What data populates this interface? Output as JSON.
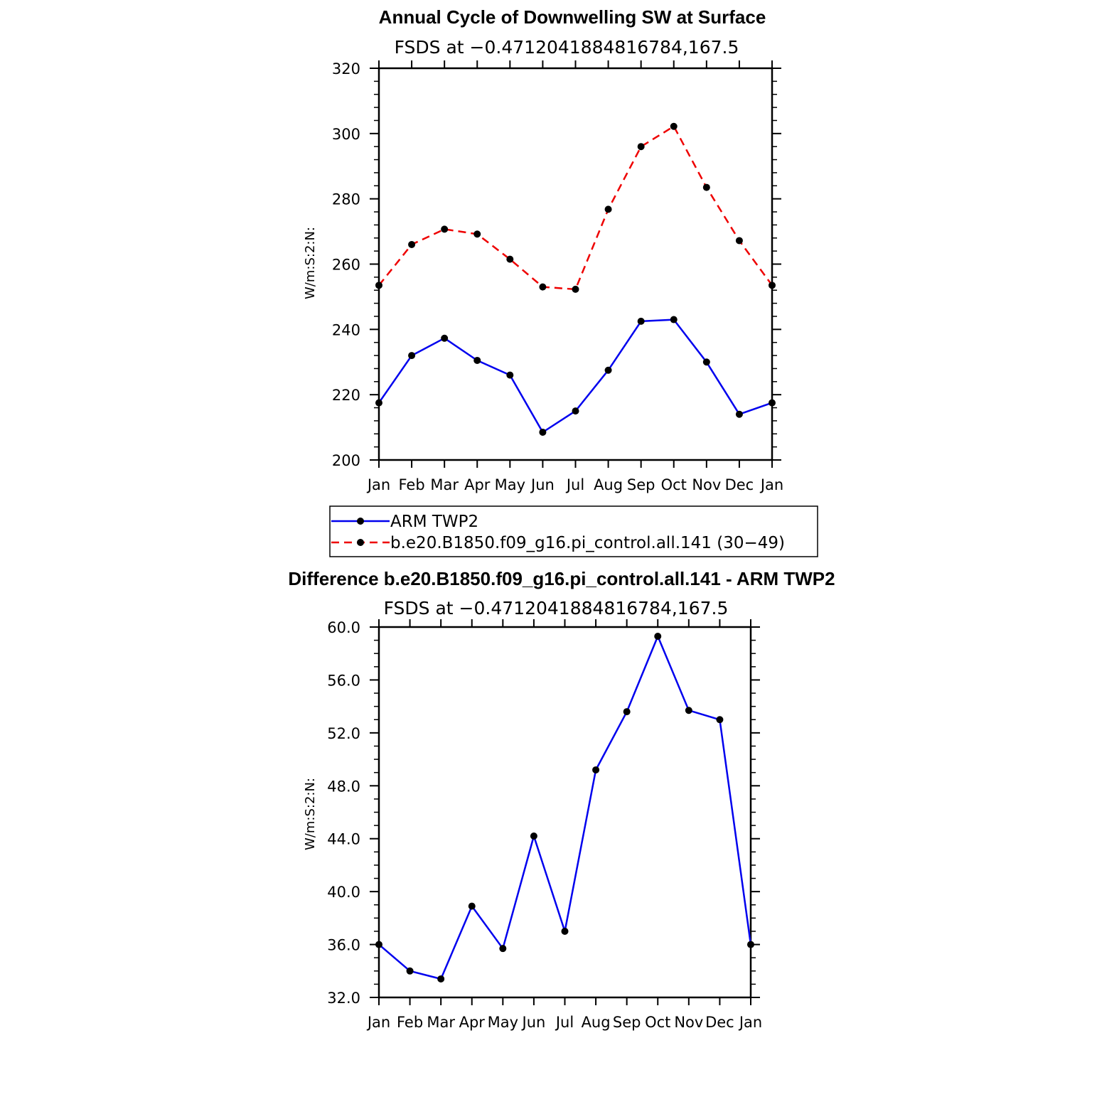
{
  "chart_data": [
    {
      "type": "line",
      "title": "Annual Cycle of Downwelling SW at Surface",
      "subtitle": "FSDS at −0.4712041884816784,167.5",
      "ylabel": "W/m:S:2:N:",
      "xlabel": "",
      "categories": [
        "Jan",
        "Feb",
        "Mar",
        "Apr",
        "May",
        "Jun",
        "Jul",
        "Aug",
        "Sep",
        "Oct",
        "Nov",
        "Dec",
        "Jan"
      ],
      "ylim": [
        200,
        320
      ],
      "yticks": [
        "200",
        "220",
        "240",
        "260",
        "280",
        "300",
        "320"
      ],
      "grid": false,
      "legend_placement": "bottom",
      "series": [
        {
          "name": "ARM TWP2",
          "color": "#0000ee",
          "style": "solid",
          "values": [
            217.5,
            232,
            237.3,
            230.5,
            226,
            208.5,
            215,
            227.5,
            242.5,
            243,
            230,
            214,
            217.5
          ]
        },
        {
          "name": "b.e20.B1850.f09_g16.pi_control.all.141 (30−49)",
          "color": "#ee0000",
          "style": "dashed",
          "values": [
            253.5,
            266,
            270.7,
            269.2,
            261.5,
            253,
            252.3,
            276.8,
            296,
            302.2,
            283.5,
            267.2,
            253.5
          ]
        }
      ]
    },
    {
      "type": "line",
      "title": "Difference b.e20.B1850.f09_g16.pi_control.all.141 - ARM TWP2",
      "subtitle": "FSDS at −0.4712041884816784,167.5",
      "ylabel": "W/m:S:2:N:",
      "xlabel": "",
      "categories": [
        "Jan",
        "Feb",
        "Mar",
        "Apr",
        "May",
        "Jun",
        "Jul",
        "Aug",
        "Sep",
        "Oct",
        "Nov",
        "Dec",
        "Jan"
      ],
      "ylim": [
        32,
        60
      ],
      "yticks": [
        "32.0",
        "36.0",
        "40.0",
        "44.0",
        "48.0",
        "52.0",
        "56.0",
        "60.0"
      ],
      "grid": false,
      "series": [
        {
          "color": "#0000ee",
          "style": "solid",
          "values": [
            36,
            34,
            33.4,
            38.9,
            35.7,
            44.2,
            37,
            49.2,
            53.6,
            59.3,
            53.7,
            53,
            36
          ]
        }
      ]
    }
  ]
}
